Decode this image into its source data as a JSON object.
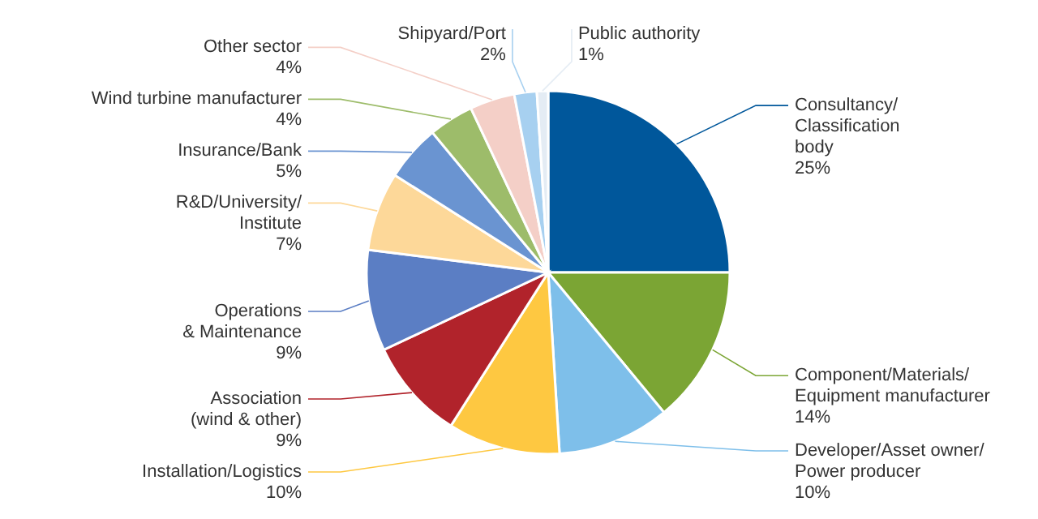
{
  "chart_data": {
    "type": "pie",
    "categories": [
      "Consultancy/\nClassification\nbody",
      "Component/Materials/\nEquipment manufacturer",
      "Developer/Asset owner/\nPower producer",
      "Installation/Logistics",
      "Association\n(wind & other)",
      "Operations\n& Maintenance",
      "R&D/University/\nInstitute",
      "Insurance/Bank",
      "Wind turbine manufacturer",
      "Other sector",
      "Shipyard/Port",
      "Public authority"
    ],
    "values": [
      25,
      14,
      10,
      10,
      9,
      9,
      7,
      5,
      4,
      4,
      2,
      1
    ],
    "value_labels": [
      "25%",
      "14%",
      "10%",
      "10%",
      "9%",
      "9%",
      "7%",
      "5%",
      "4%",
      "4%",
      "2%",
      "1%"
    ],
    "colors": [
      "#00579b",
      "#7ba534",
      "#7ebfea",
      "#fec841",
      "#b1232b",
      "#5b7ec4",
      "#fdd899",
      "#6a94d1",
      "#9dbc6a",
      "#f4cfc7",
      "#a7d0f0",
      "#e4ecf4"
    ]
  }
}
